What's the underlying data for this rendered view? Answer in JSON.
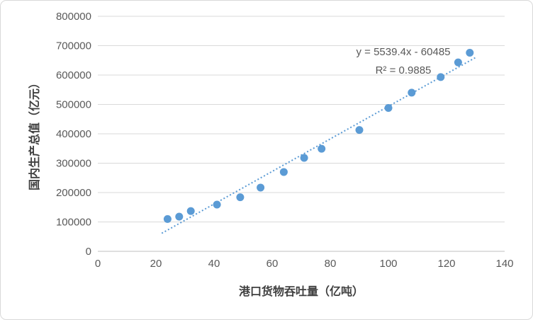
{
  "chart": {
    "background": "#ffffff",
    "border_color": "#d9d9d9",
    "gridline_color": "#d9d9d9",
    "axis_line_color": "#bfbfbf",
    "point_color": "#5b9bd5",
    "trendline_color": "#5b9bd5",
    "text_color": "#595959"
  },
  "chart_data": {
    "type": "scatter",
    "title": "",
    "xlabel": "港口货物吞吐量（亿吨）",
    "ylabel": "国内生产总值（亿元）",
    "xlim": [
      0,
      140
    ],
    "ylim": [
      0,
      800000
    ],
    "x_ticks": [
      0,
      20,
      40,
      60,
      80,
      100,
      120,
      140
    ],
    "y_ticks": [
      0,
      100000,
      200000,
      300000,
      400000,
      500000,
      600000,
      700000,
      800000
    ],
    "grid": true,
    "legend": false,
    "points": [
      {
        "x": 24,
        "y": 110000
      },
      {
        "x": 28,
        "y": 118000
      },
      {
        "x": 32,
        "y": 137000
      },
      {
        "x": 41,
        "y": 159000
      },
      {
        "x": 49,
        "y": 184000
      },
      {
        "x": 56,
        "y": 217000
      },
      {
        "x": 64,
        "y": 270000
      },
      {
        "x": 71,
        "y": 318000
      },
      {
        "x": 77,
        "y": 349000
      },
      {
        "x": 90,
        "y": 413000
      },
      {
        "x": 100,
        "y": 488000
      },
      {
        "x": 108,
        "y": 540000
      },
      {
        "x": 118,
        "y": 593000
      },
      {
        "x": 124,
        "y": 643000
      },
      {
        "x": 128,
        "y": 676000
      }
    ],
    "trendline": {
      "slope": 5539.4,
      "intercept": -60485,
      "x_start": 22,
      "x_end": 130.5,
      "style": "dotted",
      "equation_label": "y = 5539.4x - 60485",
      "r_squared_label": "R² = 0.9885"
    }
  }
}
